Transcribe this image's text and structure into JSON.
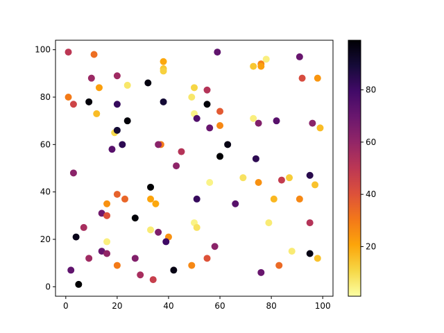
{
  "chart_data": {
    "type": "scatter",
    "title": "",
    "xlabel": "",
    "ylabel": "",
    "xlim": [
      -4,
      104
    ],
    "ylim": [
      -4,
      104
    ],
    "x_ticks": [
      0,
      20,
      40,
      60,
      80,
      100
    ],
    "y_ticks": [
      0,
      20,
      40,
      60,
      80,
      100
    ],
    "grid": false,
    "legend": "none",
    "colormap": "inferno_r",
    "colorbar": {
      "min": 1,
      "max": 99,
      "ticks": [
        20,
        40,
        60,
        80
      ]
    },
    "points": [
      {
        "x": 1,
        "y": 99,
        "c": 50
      },
      {
        "x": 11,
        "y": 98,
        "c": 33
      },
      {
        "x": 1,
        "y": 80,
        "c": 30
      },
      {
        "x": 3,
        "y": 77,
        "c": 45
      },
      {
        "x": 10,
        "y": 88,
        "c": 58
      },
      {
        "x": 13,
        "y": 84,
        "c": 22
      },
      {
        "x": 9,
        "y": 78,
        "c": 98
      },
      {
        "x": 12,
        "y": 73,
        "c": 16
      },
      {
        "x": 20,
        "y": 89,
        "c": 57
      },
      {
        "x": 20,
        "y": 77,
        "c": 82
      },
      {
        "x": 24,
        "y": 85,
        "c": 7
      },
      {
        "x": 32,
        "y": 86,
        "c": 97
      },
      {
        "x": 24,
        "y": 70,
        "c": 98
      },
      {
        "x": 19,
        "y": 65,
        "c": 10
      },
      {
        "x": 20,
        "y": 66,
        "c": 90
      },
      {
        "x": 18,
        "y": 58,
        "c": 74
      },
      {
        "x": 22,
        "y": 60,
        "c": 84
      },
      {
        "x": 38,
        "y": 95,
        "c": 20
      },
      {
        "x": 38,
        "y": 92,
        "c": 14
      },
      {
        "x": 38,
        "y": 91,
        "c": 12
      },
      {
        "x": 38,
        "y": 78,
        "c": 90
      },
      {
        "x": 37,
        "y": 60,
        "c": 30
      },
      {
        "x": 36,
        "y": 60,
        "c": 62
      },
      {
        "x": 45,
        "y": 57,
        "c": 52
      },
      {
        "x": 43,
        "y": 51,
        "c": 61
      },
      {
        "x": 50,
        "y": 84,
        "c": 11
      },
      {
        "x": 49,
        "y": 80,
        "c": 7
      },
      {
        "x": 50,
        "y": 73,
        "c": 4
      },
      {
        "x": 51,
        "y": 71,
        "c": 76
      },
      {
        "x": 55,
        "y": 83,
        "c": 52
      },
      {
        "x": 55,
        "y": 77,
        "c": 98
      },
      {
        "x": 56,
        "y": 67,
        "c": 70
      },
      {
        "x": 59,
        "y": 99,
        "c": 72
      },
      {
        "x": 60,
        "y": 74,
        "c": 38
      },
      {
        "x": 60,
        "y": 68,
        "c": 27
      },
      {
        "x": 63,
        "y": 60,
        "c": 96
      },
      {
        "x": 60,
        "y": 55,
        "c": 99
      },
      {
        "x": 73,
        "y": 93,
        "c": 14
      },
      {
        "x": 76,
        "y": 94,
        "c": 28
      },
      {
        "x": 76,
        "y": 93,
        "c": 22
      },
      {
        "x": 78,
        "y": 96,
        "c": 5
      },
      {
        "x": 73,
        "y": 71,
        "c": 5
      },
      {
        "x": 75,
        "y": 69,
        "c": 64
      },
      {
        "x": 82,
        "y": 70,
        "c": 74
      },
      {
        "x": 74,
        "y": 54,
        "c": 84
      },
      {
        "x": 91,
        "y": 97,
        "c": 70
      },
      {
        "x": 92,
        "y": 88,
        "c": 42
      },
      {
        "x": 98,
        "y": 88,
        "c": 24
      },
      {
        "x": 96,
        "y": 69,
        "c": 62
      },
      {
        "x": 99,
        "y": 67,
        "c": 16
      },
      {
        "x": 3,
        "y": 48,
        "c": 62
      },
      {
        "x": 4,
        "y": 21,
        "c": 95
      },
      {
        "x": 7,
        "y": 25,
        "c": 55
      },
      {
        "x": 9,
        "y": 12,
        "c": 57
      },
      {
        "x": 2,
        "y": 7,
        "c": 72
      },
      {
        "x": 5,
        "y": 1,
        "c": 99
      },
      {
        "x": 14,
        "y": 31,
        "c": 68
      },
      {
        "x": 16,
        "y": 35,
        "c": 25
      },
      {
        "x": 16,
        "y": 30,
        "c": 40
      },
      {
        "x": 16,
        "y": 19,
        "c": 5
      },
      {
        "x": 14,
        "y": 15,
        "c": 70
      },
      {
        "x": 16,
        "y": 14,
        "c": 60
      },
      {
        "x": 20,
        "y": 39,
        "c": 36
      },
      {
        "x": 23,
        "y": 37,
        "c": 35
      },
      {
        "x": 27,
        "y": 29,
        "c": 98
      },
      {
        "x": 20,
        "y": 9,
        "c": 30
      },
      {
        "x": 27,
        "y": 12,
        "c": 64
      },
      {
        "x": 29,
        "y": 5,
        "c": 55
      },
      {
        "x": 33,
        "y": 42,
        "c": 99
      },
      {
        "x": 33,
        "y": 37,
        "c": 21
      },
      {
        "x": 35,
        "y": 35,
        "c": 20
      },
      {
        "x": 33,
        "y": 24,
        "c": 6
      },
      {
        "x": 36,
        "y": 23,
        "c": 65
      },
      {
        "x": 40,
        "y": 21,
        "c": 25
      },
      {
        "x": 39,
        "y": 19,
        "c": 80
      },
      {
        "x": 34,
        "y": 3,
        "c": 47
      },
      {
        "x": 42,
        "y": 7,
        "c": 96
      },
      {
        "x": 49,
        "y": 9,
        "c": 27
      },
      {
        "x": 56,
        "y": 44,
        "c": 4
      },
      {
        "x": 51,
        "y": 37,
        "c": 82
      },
      {
        "x": 50,
        "y": 27,
        "c": 4
      },
      {
        "x": 51,
        "y": 25,
        "c": 8
      },
      {
        "x": 58,
        "y": 17,
        "c": 62
      },
      {
        "x": 55,
        "y": 12,
        "c": 40
      },
      {
        "x": 69,
        "y": 46,
        "c": 8
      },
      {
        "x": 66,
        "y": 35,
        "c": 74
      },
      {
        "x": 75,
        "y": 44,
        "c": 25
      },
      {
        "x": 84,
        "y": 45,
        "c": 48
      },
      {
        "x": 87,
        "y": 46,
        "c": 13
      },
      {
        "x": 81,
        "y": 37,
        "c": 17
      },
      {
        "x": 79,
        "y": 27,
        "c": 6
      },
      {
        "x": 76,
        "y": 6,
        "c": 70
      },
      {
        "x": 83,
        "y": 9,
        "c": 34
      },
      {
        "x": 88,
        "y": 15,
        "c": 6
      },
      {
        "x": 95,
        "y": 47,
        "c": 85
      },
      {
        "x": 97,
        "y": 43,
        "c": 15
      },
      {
        "x": 91,
        "y": 37,
        "c": 27
      },
      {
        "x": 95,
        "y": 27,
        "c": 52
      },
      {
        "x": 95,
        "y": 14,
        "c": 96
      },
      {
        "x": 98,
        "y": 12,
        "c": 15
      }
    ]
  }
}
